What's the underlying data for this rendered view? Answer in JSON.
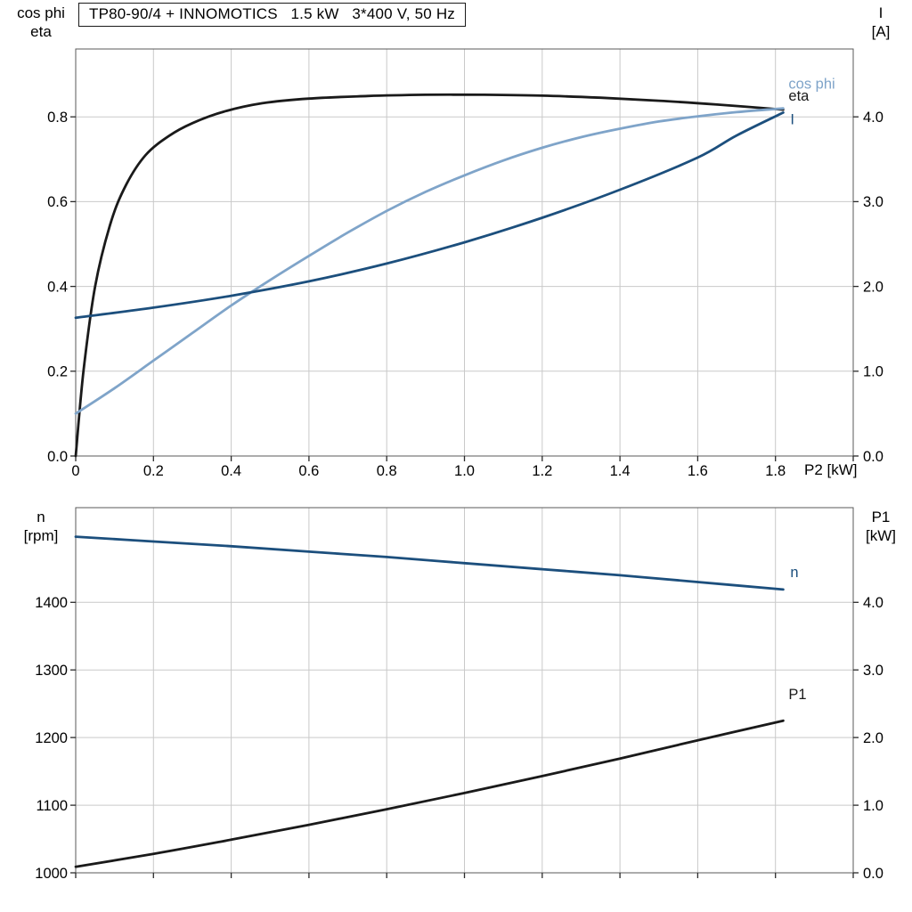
{
  "title": {
    "text": "TP80-90/4 + INNOMOTICS   1.5 kW   3*400 V, 50 Hz"
  },
  "colors": {
    "black": "#1a1a1a",
    "light_blue": "#7fa4c9",
    "dark_blue": "#1c4f7d",
    "grid": "#c9c9c9",
    "frame": "#5a5a5a",
    "tick": "#2b2b2b"
  },
  "chart_data": [
    {
      "type": "line",
      "name": "motor-electrical",
      "x_axis": {
        "label": "P2 [kW]",
        "lim": [
          0,
          2.0
        ],
        "ticks": [
          0,
          0.2,
          0.4,
          0.6,
          0.8,
          1.0,
          1.2,
          1.4,
          1.6,
          1.8
        ],
        "tick_labels": [
          "0",
          "0.2",
          "0.4",
          "0.6",
          "0.8",
          "1.0",
          "1.2",
          "1.4",
          "1.6",
          "1.8"
        ]
      },
      "left_axis": {
        "label_lines": [
          "cos phi",
          "eta"
        ],
        "lim": [
          0,
          0.96
        ],
        "ticks": [
          0,
          0.2,
          0.4,
          0.6,
          0.8
        ],
        "tick_labels": [
          "0.0",
          "0.2",
          "0.4",
          "0.6",
          "0.8"
        ]
      },
      "right_axis": {
        "label_lines": [
          "I",
          "[A]"
        ],
        "lim": [
          0,
          4.8
        ],
        "ticks": [
          0,
          1,
          2,
          3,
          4
        ],
        "tick_labels": [
          "0.0",
          "1.0",
          "2.0",
          "3.0",
          "4.0"
        ]
      },
      "grid": true,
      "legend_position": "curve-end-labels",
      "series": [
        {
          "name": "eta",
          "axis": "left",
          "color": "black",
          "x": [
            0,
            0.02,
            0.05,
            0.09,
            0.13,
            0.18,
            0.24,
            0.3,
            0.38,
            0.48,
            0.6,
            0.75,
            0.9,
            1.05,
            1.2,
            1.35,
            1.5,
            1.65,
            1.82
          ],
          "y": [
            0,
            0.2,
            0.4,
            0.55,
            0.64,
            0.71,
            0.755,
            0.785,
            0.812,
            0.832,
            0.843,
            0.849,
            0.852,
            0.852,
            0.85,
            0.845,
            0.838,
            0.829,
            0.817
          ],
          "end_label": {
            "text": "eta",
            "dx": 6,
            "dy": -10
          }
        },
        {
          "name": "cos phi",
          "axis": "left",
          "color": "light_blue",
          "x": [
            0,
            0.1,
            0.2,
            0.3,
            0.4,
            0.5,
            0.6,
            0.7,
            0.8,
            0.9,
            1.0,
            1.1,
            1.2,
            1.3,
            1.4,
            1.5,
            1.6,
            1.7,
            1.82
          ],
          "y": [
            0.1,
            0.16,
            0.225,
            0.29,
            0.355,
            0.415,
            0.472,
            0.527,
            0.578,
            0.623,
            0.662,
            0.697,
            0.727,
            0.752,
            0.772,
            0.789,
            0.801,
            0.811,
            0.82
          ],
          "end_label": {
            "text": "cos phi",
            "dx": 6,
            "dy": -22
          }
        },
        {
          "name": "I",
          "axis": "right",
          "color": "dark_blue",
          "x": [
            0,
            0.2,
            0.4,
            0.6,
            0.8,
            1.0,
            1.2,
            1.4,
            1.6,
            1.7,
            1.82
          ],
          "y": [
            1.63,
            1.75,
            1.89,
            2.06,
            2.27,
            2.52,
            2.81,
            3.14,
            3.52,
            3.78,
            4.05
          ],
          "end_label": {
            "text": "I",
            "dx": 8,
            "dy": 13
          }
        }
      ]
    },
    {
      "type": "line",
      "name": "speed-and-input-power",
      "x_axis": {
        "label": "",
        "lim": [
          0,
          2.0
        ],
        "ticks": [
          0,
          0.2,
          0.4,
          0.6,
          0.8,
          1.0,
          1.2,
          1.4,
          1.6,
          1.8
        ],
        "tick_labels": []
      },
      "left_axis": {
        "label_lines": [
          "n",
          "[rpm]"
        ],
        "lim": [
          1000,
          1540
        ],
        "ticks": [
          1000,
          1100,
          1200,
          1300,
          1400
        ],
        "tick_labels": [
          "1000",
          "1100",
          "1200",
          "1300",
          "1400"
        ]
      },
      "right_axis": {
        "label_lines": [
          "P1",
          "[kW]"
        ],
        "lim": [
          0,
          5.4
        ],
        "ticks": [
          0,
          1,
          2,
          3,
          4
        ],
        "tick_labels": [
          "0.0",
          "1.0",
          "2.0",
          "3.0",
          "4.0"
        ]
      },
      "grid": true,
      "legend_position": "curve-end-labels",
      "series": [
        {
          "name": "n",
          "axis": "left",
          "color": "dark_blue",
          "x": [
            0,
            0.2,
            0.4,
            0.6,
            0.8,
            1.0,
            1.2,
            1.4,
            1.6,
            1.82
          ],
          "y": [
            1497,
            1490,
            1483,
            1475,
            1467,
            1458,
            1449,
            1440,
            1430,
            1419
          ],
          "end_label": {
            "text": "n",
            "dx": 8,
            "dy": -14
          }
        },
        {
          "name": "P1",
          "axis": "right",
          "color": "black",
          "x": [
            0,
            0.2,
            0.4,
            0.6,
            0.8,
            1.0,
            1.2,
            1.4,
            1.6,
            1.82
          ],
          "y": [
            0.09,
            0.28,
            0.49,
            0.71,
            0.94,
            1.18,
            1.43,
            1.69,
            1.96,
            2.25
          ],
          "end_label": {
            "text": "P1",
            "dx": 6,
            "dy": -24
          }
        }
      ]
    }
  ]
}
